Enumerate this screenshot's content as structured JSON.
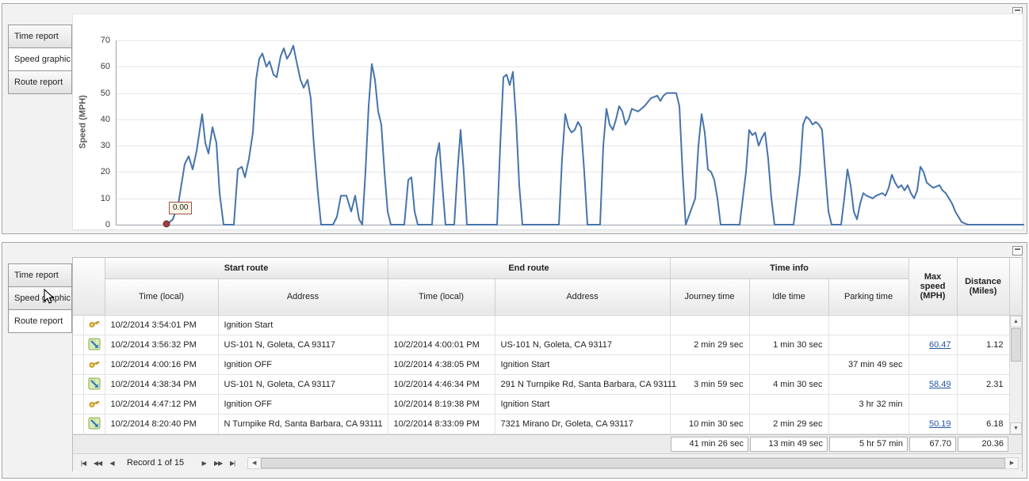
{
  "panels": {
    "top": {
      "tabs": [
        {
          "label": "Time report",
          "selected": false
        },
        {
          "label": "Speed graphic",
          "selected": true
        },
        {
          "label": "Route report",
          "selected": false
        }
      ]
    },
    "bottom": {
      "tabs": [
        {
          "label": "Time report",
          "selected": false
        },
        {
          "label": "Speed graphic",
          "selected": false
        },
        {
          "label": "Route report",
          "selected": true
        }
      ]
    }
  },
  "chart_data": {
    "type": "line",
    "title": "",
    "ylabel": "Speed (MPH)",
    "xlabel": "",
    "ylim": [
      0,
      70
    ],
    "yticks": [
      0,
      10,
      20,
      30,
      40,
      50,
      60,
      70
    ],
    "grid": true,
    "legend": false,
    "line_color": "#4674ab",
    "start_marker": {
      "x": 63,
      "value": 0,
      "tooltip": "0.00",
      "color": "#9c4040"
    },
    "series": [
      {
        "name": "Speed (MPH)",
        "points": [
          [
            63,
            0
          ],
          [
            71,
            2
          ],
          [
            78,
            8
          ],
          [
            86,
            23
          ],
          [
            91,
            26
          ],
          [
            96,
            21
          ],
          [
            101,
            28
          ],
          [
            108,
            42
          ],
          [
            112,
            31
          ],
          [
            116,
            27
          ],
          [
            121,
            37
          ],
          [
            126,
            31
          ],
          [
            130,
            12
          ],
          [
            135,
            0
          ],
          [
            148,
            0
          ],
          [
            153,
            21
          ],
          [
            158,
            22
          ],
          [
            162,
            18
          ],
          [
            167,
            25
          ],
          [
            172,
            35
          ],
          [
            176,
            55
          ],
          [
            180,
            63
          ],
          [
            184,
            65
          ],
          [
            189,
            60
          ],
          [
            193,
            62
          ],
          [
            198,
            57
          ],
          [
            202,
            56
          ],
          [
            207,
            64
          ],
          [
            211,
            67
          ],
          [
            215,
            63
          ],
          [
            219,
            65
          ],
          [
            223,
            68
          ],
          [
            227,
            62
          ],
          [
            232,
            55
          ],
          [
            236,
            52
          ],
          [
            241,
            55
          ],
          [
            245,
            48
          ],
          [
            249,
            30
          ],
          [
            254,
            12
          ],
          [
            258,
            0
          ],
          [
            273,
            0
          ],
          [
            278,
            3
          ],
          [
            283,
            11
          ],
          [
            290,
            11
          ],
          [
            296,
            5
          ],
          [
            301,
            11
          ],
          [
            306,
            2
          ],
          [
            310,
            0
          ],
          [
            314,
            20
          ],
          [
            318,
            45
          ],
          [
            322,
            61
          ],
          [
            326,
            55
          ],
          [
            330,
            43
          ],
          [
            334,
            38
          ],
          [
            338,
            20
          ],
          [
            342,
            5
          ],
          [
            346,
            0
          ],
          [
            363,
            0
          ],
          [
            368,
            17
          ],
          [
            372,
            18
          ],
          [
            376,
            5
          ],
          [
            380,
            0
          ],
          [
            398,
            0
          ],
          [
            403,
            25
          ],
          [
            407,
            31
          ],
          [
            411,
            15
          ],
          [
            415,
            0
          ],
          [
            426,
            0
          ],
          [
            430,
            20
          ],
          [
            434,
            36
          ],
          [
            438,
            20
          ],
          [
            442,
            0
          ],
          [
            480,
            0
          ],
          [
            484,
            30
          ],
          [
            488,
            56
          ],
          [
            492,
            57
          ],
          [
            496,
            53
          ],
          [
            500,
            58
          ],
          [
            504,
            40
          ],
          [
            508,
            15
          ],
          [
            512,
            0
          ],
          [
            558,
            0
          ],
          [
            562,
            25
          ],
          [
            566,
            42
          ],
          [
            570,
            37
          ],
          [
            574,
            35
          ],
          [
            578,
            36
          ],
          [
            582,
            39
          ],
          [
            586,
            37
          ],
          [
            590,
            20
          ],
          [
            594,
            0
          ],
          [
            610,
            0
          ],
          [
            614,
            30
          ],
          [
            618,
            44
          ],
          [
            622,
            38
          ],
          [
            626,
            36
          ],
          [
            630,
            40
          ],
          [
            634,
            45
          ],
          [
            638,
            43
          ],
          [
            642,
            38
          ],
          [
            646,
            40
          ],
          [
            650,
            44
          ],
          [
            658,
            43
          ],
          [
            666,
            45
          ],
          [
            674,
            48
          ],
          [
            682,
            49
          ],
          [
            686,
            47
          ],
          [
            690,
            49
          ],
          [
            694,
            50
          ],
          [
            706,
            50
          ],
          [
            710,
            45
          ],
          [
            714,
            20
          ],
          [
            718,
            0
          ],
          [
            730,
            10
          ],
          [
            734,
            30
          ],
          [
            738,
            42
          ],
          [
            742,
            35
          ],
          [
            746,
            21
          ],
          [
            750,
            20
          ],
          [
            754,
            17
          ],
          [
            758,
            10
          ],
          [
            762,
            0
          ],
          [
            786,
            0
          ],
          [
            794,
            20
          ],
          [
            798,
            36
          ],
          [
            802,
            34
          ],
          [
            806,
            35
          ],
          [
            810,
            30
          ],
          [
            814,
            33
          ],
          [
            818,
            35
          ],
          [
            822,
            25
          ],
          [
            826,
            10
          ],
          [
            830,
            0
          ],
          [
            854,
            0
          ],
          [
            862,
            20
          ],
          [
            866,
            38
          ],
          [
            870,
            41
          ],
          [
            874,
            40
          ],
          [
            878,
            38
          ],
          [
            882,
            39
          ],
          [
            886,
            38
          ],
          [
            890,
            36
          ],
          [
            894,
            20
          ],
          [
            898,
            5
          ],
          [
            902,
            0
          ],
          [
            914,
            0
          ],
          [
            918,
            10
          ],
          [
            922,
            21
          ],
          [
            926,
            15
          ],
          [
            930,
            5
          ],
          [
            934,
            2
          ],
          [
            938,
            8
          ],
          [
            942,
            12
          ],
          [
            946,
            11
          ],
          [
            954,
            10
          ],
          [
            958,
            11
          ],
          [
            966,
            12
          ],
          [
            970,
            11
          ],
          [
            974,
            14
          ],
          [
            978,
            19
          ],
          [
            982,
            16
          ],
          [
            986,
            14
          ],
          [
            990,
            15
          ],
          [
            994,
            13
          ],
          [
            998,
            15
          ],
          [
            1002,
            12
          ],
          [
            1006,
            10
          ],
          [
            1010,
            13
          ],
          [
            1014,
            22
          ],
          [
            1018,
            20
          ],
          [
            1022,
            16
          ],
          [
            1026,
            15
          ],
          [
            1030,
            14
          ],
          [
            1038,
            15
          ],
          [
            1042,
            13
          ],
          [
            1046,
            12
          ],
          [
            1050,
            10
          ],
          [
            1054,
            8
          ],
          [
            1058,
            5
          ],
          [
            1066,
            1
          ],
          [
            1074,
            0
          ],
          [
            1144,
            0
          ]
        ]
      }
    ]
  },
  "grid": {
    "column_groups": [
      {
        "label": "Start route"
      },
      {
        "label": "End route"
      },
      {
        "label": "Time info"
      }
    ],
    "columns": [
      "Time (local)",
      "Address",
      "Time (local)",
      "Address",
      "Journey time",
      "Idle time",
      "Parking time",
      "Max speed\n(MPH)",
      "Distance\n(Miles)"
    ],
    "rows": [
      {
        "icon": "key",
        "cells": [
          "10/2/2014 3:54:01 PM",
          "Ignition Start",
          "",
          "",
          "",
          "",
          "",
          "",
          ""
        ]
      },
      {
        "icon": "route",
        "cells": [
          "10/2/2014 3:56:32 PM",
          "US-101 N, Goleta, CA 93117",
          "10/2/2014 4:00:01 PM",
          "US-101 N, Goleta, CA 93117",
          "2 min 29 sec",
          "1 min 30 sec",
          "",
          "60.47",
          "1.12"
        ],
        "max_speed_link": true
      },
      {
        "icon": "key",
        "cells": [
          "10/2/2014 4:00:16 PM",
          "Ignition OFF",
          "10/2/2014 4:38:05 PM",
          "Ignition Start",
          "",
          "",
          "37 min 49 sec",
          "",
          ""
        ]
      },
      {
        "icon": "route",
        "cells": [
          "10/2/2014 4:38:34 PM",
          "US-101 N, Goleta, CA 93117",
          "10/2/2014 4:46:34 PM",
          "291 N Turnpike Rd, Santa Barbara, CA 93111",
          "3 min 59 sec",
          "4 min 30 sec",
          "",
          "58.49",
          "2.31"
        ],
        "max_speed_link": true
      },
      {
        "icon": "key",
        "cells": [
          "10/2/2014 4:47:12 PM",
          "Ignition OFF",
          "10/2/2014 8:19:38 PM",
          "Ignition Start",
          "",
          "",
          "3 hr 32 min",
          "",
          ""
        ]
      },
      {
        "icon": "route",
        "cells": [
          "10/2/2014 8:20:40 PM",
          "N Turnpike Rd, Santa Barbara, CA 93111",
          "10/2/2014 8:33:09 PM",
          "7321 Mirano Dr, Goleta, CA 93117",
          "10 min 30 sec",
          "2 min 29 sec",
          "",
          "50.19",
          "6.18"
        ],
        "max_speed_link": true
      }
    ],
    "summary": {
      "journey_time": "41 min 26 sec",
      "idle_time": "13 min 49 sec",
      "parking_time": "5 hr 57 min",
      "max_speed": "67.70",
      "distance": "20.36"
    },
    "navigator": {
      "record_text": "Record 1 of 15",
      "first_glyph": "|◀",
      "prev_page_glyph": "◀◀",
      "prev_glyph": "◀",
      "next_glyph": "▶",
      "next_page_glyph": "▶▶",
      "last_glyph": "▶|"
    },
    "scrollbar": {
      "up_glyph": "▲",
      "down_glyph": "▼",
      "left_glyph": "◀",
      "right_glyph": "▶"
    }
  }
}
